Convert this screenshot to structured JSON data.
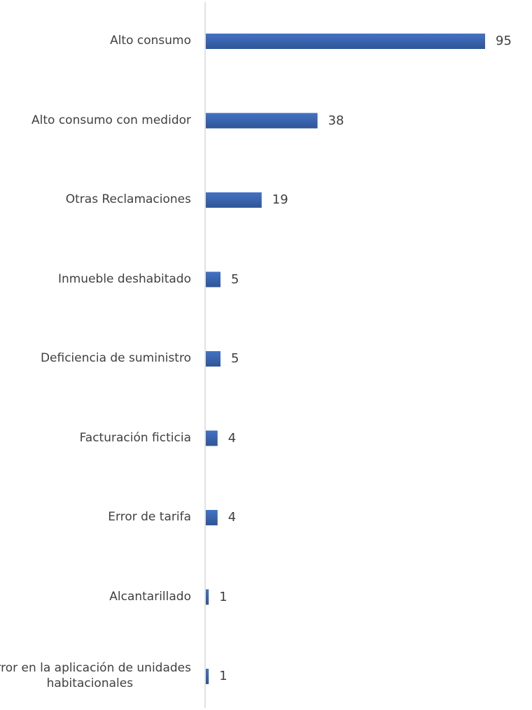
{
  "chart_data": {
    "type": "bar",
    "orientation": "horizontal",
    "categories": [
      "Alto consumo",
      "Alto consumo con medidor",
      "Otras Reclamaciones",
      "Inmueble deshabitado",
      "Deficiencia de suministro",
      "Facturación ficticia",
      "Error de tarifa",
      "Alcantarillado",
      "Error en la aplicación de unidades habitacionales"
    ],
    "category_lines": [
      [
        "Alto consumo"
      ],
      [
        "Alto consumo con medidor"
      ],
      [
        "Otras Reclamaciones"
      ],
      [
        "Inmueble deshabitado"
      ],
      [
        "Deficiencia de suministro"
      ],
      [
        "Facturación ficticia"
      ],
      [
        "Error de tarifa"
      ],
      [
        "Alcantarillado"
      ],
      [
        "Error en la aplicación de unidades",
        "habitacionales"
      ]
    ],
    "values": [
      95,
      38,
      19,
      5,
      5,
      4,
      4,
      1,
      1
    ],
    "title": "",
    "xlabel": "",
    "ylabel": "",
    "xlim": [
      0,
      100
    ],
    "grid": false,
    "legend": "none",
    "data_labels": true,
    "bar_color": "#4472C4",
    "bar_color_dark": "#2F5597",
    "axis_color": "#D9D9D9",
    "text_color": "#404040"
  }
}
